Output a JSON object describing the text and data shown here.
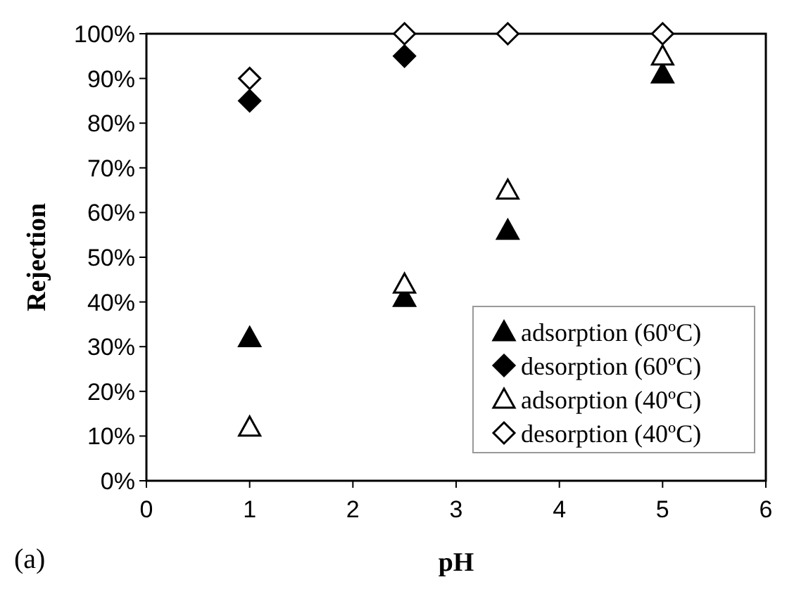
{
  "chart_data": {
    "type": "scatter",
    "xlabel": "pH",
    "ylabel": "Rejection",
    "x": [
      1,
      2.5,
      3.5,
      5
    ],
    "series": [
      {
        "name": "adsorption (60ºC)",
        "color": "#000000",
        "marker": "triangle",
        "values": [
          32,
          41,
          56,
          91
        ]
      },
      {
        "name": "desorption (60ºC)",
        "color": "#000000",
        "marker": "diamond",
        "values": [
          85,
          95,
          null,
          null
        ]
      },
      {
        "name": "adsorption (40ºC)",
        "color": "#000000",
        "marker": "triangle-open",
        "values": [
          12,
          44,
          65,
          95
        ]
      },
      {
        "name": "desorption (40ºC)",
        "color": "#000000",
        "marker": "diamond-open",
        "values": [
          90,
          100,
          100,
          100
        ]
      }
    ],
    "xlim": [
      0,
      6
    ],
    "xticks": [
      0,
      1,
      2,
      3,
      4,
      5,
      6
    ],
    "ylim": [
      0,
      100
    ],
    "yticks": [
      {
        "value": 0,
        "label": "0%"
      },
      {
        "value": 10,
        "label": "10%"
      },
      {
        "value": 20,
        "label": "20%"
      },
      {
        "value": 30,
        "label": "30%"
      },
      {
        "value": 40,
        "label": "40%"
      },
      {
        "value": 50,
        "label": "50%"
      },
      {
        "value": 60,
        "label": "60%"
      },
      {
        "value": 70,
        "label": "70%"
      },
      {
        "value": 80,
        "label": "80%"
      },
      {
        "value": 90,
        "label": "90%"
      },
      {
        "value": 100,
        "label": "100%"
      }
    ],
    "grid": false,
    "legend": "bottom right",
    "annotations": [
      "(a)"
    ]
  }
}
